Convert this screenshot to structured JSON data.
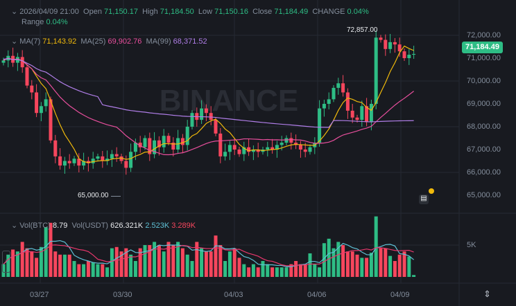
{
  "header": {
    "datetime": "2026/04/09 21:00",
    "open_label": "Open",
    "open": "71,150.17",
    "high_label": "High",
    "high": "71,184.50",
    "low_label": "Low",
    "low": "71,150.16",
    "close_label": "Close",
    "close": "71,184.49",
    "change_label": "CHANGE",
    "change": "0.04%",
    "range_label": "Range",
    "range": "0.04%"
  },
  "ma": {
    "ma7_label": "MA(7)",
    "ma7": "71,143.92",
    "ma25_label": "MA(25)",
    "ma25": "69,902.76",
    "ma99_label": "MA(99)",
    "ma99": "68,371.52"
  },
  "vol": {
    "btc_label": "Vol(BTC)",
    "btc": "8.79",
    "usdt_label": "Vol(USDT)",
    "usdt": "626.321K",
    "ma1": "2.523K",
    "ma2": "3.289K",
    "axis_label": "5K"
  },
  "price_tag": "71,184.49",
  "annotations": {
    "high": "72,857.00",
    "low": "65,000.00"
  },
  "watermark": "BINANCE",
  "colors": {
    "up": "#2ebd85",
    "down": "#f6465d",
    "ma7": "#f0b90b",
    "ma25": "#e84f9d",
    "ma99": "#b07ee8",
    "vol_ma1": "#5fc1d6",
    "vol_ma2": "#e8386d"
  },
  "chart_data": {
    "type": "candlestick",
    "y_ticks": [
      "72,000.00",
      "71,000.00",
      "70,000.00",
      "69,000.00",
      "68,000.00",
      "67,000.00",
      "66,000.00",
      "65,000.00"
    ],
    "ylim": [
      64700,
      72900
    ],
    "x_ticks": [
      "03/27",
      "03/30",
      "04/03",
      "04/06",
      "04/09"
    ],
    "closes": [
      70900,
      71100,
      70800,
      71050,
      70600,
      69800,
      69500,
      68600,
      68900,
      69200,
      67400,
      66700,
      66300,
      66500,
      66400,
      66600,
      66300,
      66500,
      66400,
      66600,
      66700,
      66500,
      66600,
      66800,
      66700,
      66500,
      66200,
      66900,
      67300,
      67100,
      67500,
      66800,
      67400,
      67100,
      67600,
      67300,
      67000,
      67500,
      67200,
      68000,
      68600,
      68300,
      68800,
      68600,
      68300,
      67700,
      66700,
      66900,
      67200,
      67000,
      66800,
      67100,
      66900,
      67000,
      66900,
      67000,
      67100,
      67000,
      67200,
      67300,
      67500,
      67300,
      67200,
      67000,
      66900,
      67100,
      67300,
      68800,
      69000,
      69200,
      69700,
      69900,
      69500,
      68700,
      68400,
      68300,
      68900,
      68200,
      69000,
      71900,
      71800,
      71400,
      71700,
      71600,
      71300,
      71000,
      71150,
      71184.49
    ],
    "volumes_k": [
      2,
      3.5,
      4.3,
      4,
      5.5,
      4.5,
      4,
      3,
      4.7,
      7.8,
      8.5,
      4,
      3.5,
      3.5,
      3.5,
      2.5,
      2,
      2,
      2.5,
      2.3,
      2,
      2,
      1.5,
      4.5,
      4.7,
      4,
      4.5,
      3.5,
      2.5,
      4.5,
      5,
      5,
      5.5,
      5,
      4,
      5.5,
      5,
      5.5,
      4.5,
      3.5,
      2.5,
      5.5,
      4.5,
      4,
      4,
      6.5,
      5,
      2.5,
      4,
      4.5,
      3,
      2,
      1.5,
      2,
      1.5,
      2.5,
      2,
      1.5,
      1.5,
      1.5,
      1.5,
      2,
      2.5,
      2,
      2,
      3.7,
      2,
      1.5,
      5.3,
      6,
      4.5,
      5.5,
      5,
      4,
      4,
      3.5,
      3,
      3,
      3.8,
      9.5,
      4.5,
      4.5,
      3.3,
      2.5,
      3.5,
      4,
      3.2,
      0.3
    ]
  }
}
